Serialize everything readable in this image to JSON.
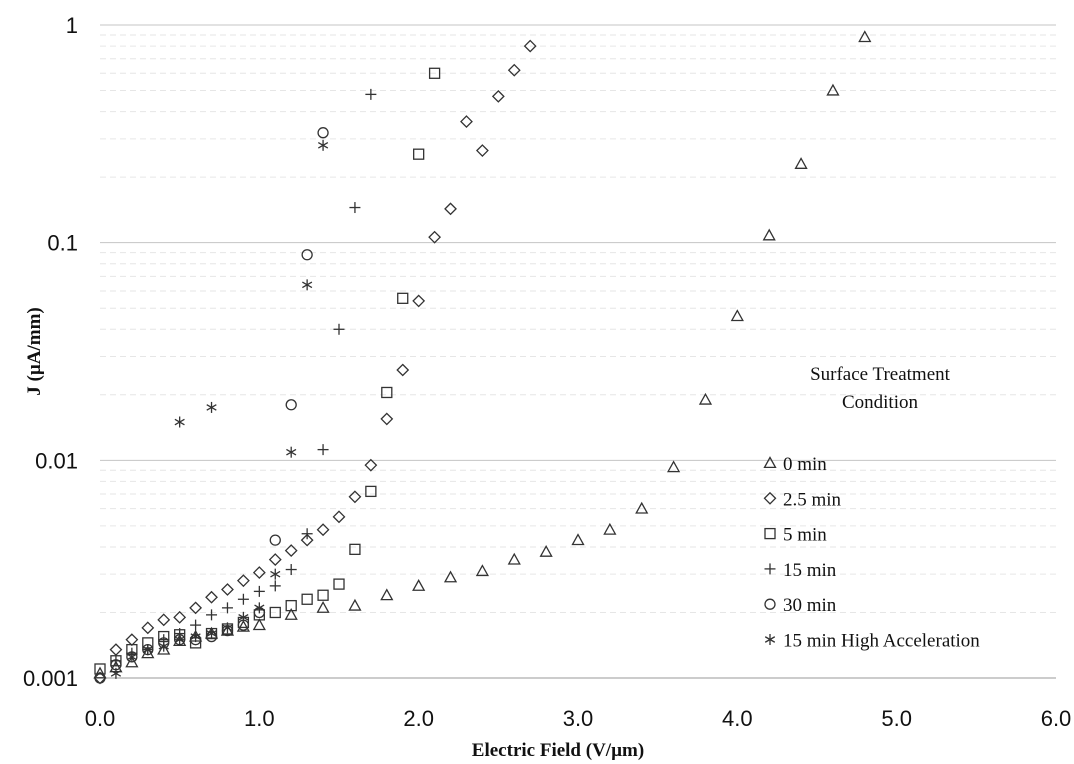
{
  "chart_data": {
    "type": "scatter",
    "title": "",
    "xlabel": "Electric Field (V/µm)",
    "ylabel": "J (µA/mm)",
    "xlim": [
      0,
      6
    ],
    "ylim": [
      0.001,
      1
    ],
    "yscale": "log",
    "x_ticks": [
      "0.0",
      "1.0",
      "2.0",
      "3.0",
      "4.0",
      "5.0",
      "6.0"
    ],
    "y_ticks": [
      "0.001",
      "0.01",
      "0.1",
      "1"
    ],
    "grid": "horizontal",
    "legend_title": "Surface Treatment Condition",
    "legend_title_lines": [
      "Surface Treatment",
      "Condition"
    ],
    "legend_position": "right",
    "series": [
      {
        "name": "0 min",
        "marker": "triangle",
        "points": [
          [
            0.0,
            0.00105
          ],
          [
            0.1,
            0.00112
          ],
          [
            0.2,
            0.00118
          ],
          [
            0.3,
            0.0013
          ],
          [
            0.4,
            0.00135
          ],
          [
            0.5,
            0.00148
          ],
          [
            0.6,
            0.00155
          ],
          [
            0.7,
            0.0016
          ],
          [
            0.8,
            0.00165
          ],
          [
            0.9,
            0.00172
          ],
          [
            1.0,
            0.00175
          ],
          [
            1.2,
            0.00195
          ],
          [
            1.4,
            0.0021
          ],
          [
            1.6,
            0.00215
          ],
          [
            1.8,
            0.0024
          ],
          [
            2.0,
            0.00265
          ],
          [
            2.2,
            0.0029
          ],
          [
            2.4,
            0.0031
          ],
          [
            2.6,
            0.0035
          ],
          [
            2.8,
            0.0038
          ],
          [
            3.0,
            0.0043
          ],
          [
            3.2,
            0.0048
          ],
          [
            3.4,
            0.006
          ],
          [
            3.6,
            0.0093
          ],
          [
            3.8,
            0.019
          ],
          [
            4.0,
            0.046
          ],
          [
            4.2,
            0.108
          ],
          [
            4.4,
            0.23
          ],
          [
            4.6,
            0.5
          ],
          [
            4.8,
            0.88
          ]
        ]
      },
      {
        "name": "2.5 min",
        "marker": "diamond",
        "points": [
          [
            0.0,
            0.001
          ],
          [
            0.1,
            0.00135
          ],
          [
            0.2,
            0.0015
          ],
          [
            0.3,
            0.0017
          ],
          [
            0.4,
            0.00185
          ],
          [
            0.5,
            0.0019
          ],
          [
            0.6,
            0.0021
          ],
          [
            0.7,
            0.00235
          ],
          [
            0.8,
            0.00255
          ],
          [
            0.9,
            0.0028
          ],
          [
            1.0,
            0.00305
          ],
          [
            1.1,
            0.0035
          ],
          [
            1.2,
            0.00385
          ],
          [
            1.3,
            0.0043
          ],
          [
            1.4,
            0.0048
          ],
          [
            1.5,
            0.0055
          ],
          [
            1.6,
            0.0068
          ],
          [
            1.7,
            0.0095
          ],
          [
            1.8,
            0.0155
          ],
          [
            1.9,
            0.026
          ],
          [
            2.0,
            0.054
          ],
          [
            2.1,
            0.106
          ],
          [
            2.2,
            0.143
          ],
          [
            2.3,
            0.36
          ],
          [
            2.4,
            0.265
          ],
          [
            2.5,
            0.47
          ],
          [
            2.6,
            0.62
          ],
          [
            2.7,
            0.8
          ]
        ]
      },
      {
        "name": "5 min",
        "marker": "square",
        "points": [
          [
            0.0,
            0.0011
          ],
          [
            0.1,
            0.0012
          ],
          [
            0.2,
            0.00135
          ],
          [
            0.3,
            0.00145
          ],
          [
            0.4,
            0.00155
          ],
          [
            0.5,
            0.00158
          ],
          [
            0.6,
            0.00145
          ],
          [
            0.7,
            0.0016
          ],
          [
            0.8,
            0.00168
          ],
          [
            0.9,
            0.0018
          ],
          [
            1.0,
            0.00195
          ],
          [
            1.1,
            0.002
          ],
          [
            1.2,
            0.00215
          ],
          [
            1.3,
            0.0023
          ],
          [
            1.4,
            0.0024
          ],
          [
            1.5,
            0.0027
          ],
          [
            1.6,
            0.0039
          ],
          [
            1.7,
            0.0072
          ],
          [
            1.8,
            0.0205
          ],
          [
            1.9,
            0.0555
          ],
          [
            2.0,
            0.255
          ],
          [
            2.1,
            0.6
          ]
        ]
      },
      {
        "name": "15 min",
        "marker": "plus",
        "points": [
          [
            0.1,
            0.0012
          ],
          [
            0.2,
            0.0013
          ],
          [
            0.3,
            0.00135
          ],
          [
            0.4,
            0.0015
          ],
          [
            0.5,
            0.0016
          ],
          [
            0.6,
            0.00175
          ],
          [
            0.7,
            0.00195
          ],
          [
            0.8,
            0.0021
          ],
          [
            0.9,
            0.0023
          ],
          [
            1.0,
            0.0025
          ],
          [
            1.1,
            0.00265
          ],
          [
            1.2,
            0.00315
          ],
          [
            1.3,
            0.0046
          ],
          [
            1.4,
            0.0112
          ],
          [
            1.5,
            0.04
          ],
          [
            1.6,
            0.145
          ],
          [
            1.7,
            0.48
          ]
        ]
      },
      {
        "name": "30 min",
        "marker": "circle",
        "points": [
          [
            0.0,
            0.001
          ],
          [
            0.1,
            0.00115
          ],
          [
            0.2,
            0.00125
          ],
          [
            0.3,
            0.00135
          ],
          [
            0.4,
            0.00145
          ],
          [
            0.5,
            0.0015
          ],
          [
            0.6,
            0.0015
          ],
          [
            0.7,
            0.00155
          ],
          [
            0.8,
            0.00165
          ],
          [
            0.9,
            0.00175
          ],
          [
            1.0,
            0.002
          ],
          [
            1.1,
            0.0043
          ],
          [
            1.2,
            0.018
          ],
          [
            1.3,
            0.088
          ],
          [
            1.4,
            0.32
          ]
        ]
      },
      {
        "name": "15 min High Acceleration",
        "marker": "asterisk",
        "points": [
          [
            0.1,
            0.00105
          ],
          [
            0.2,
            0.00125
          ],
          [
            0.3,
            0.00135
          ],
          [
            0.4,
            0.0014
          ],
          [
            0.5,
            0.0015
          ],
          [
            0.6,
            0.00155
          ],
          [
            0.7,
            0.0016
          ],
          [
            0.8,
            0.0017
          ],
          [
            0.9,
            0.0019
          ],
          [
            1.0,
            0.0021
          ],
          [
            1.1,
            0.003
          ],
          [
            1.2,
            0.0109
          ],
          [
            1.3,
            0.064
          ],
          [
            1.4,
            0.28
          ],
          [
            0.5,
            0.015
          ],
          [
            0.7,
            0.0175
          ]
        ]
      }
    ]
  }
}
